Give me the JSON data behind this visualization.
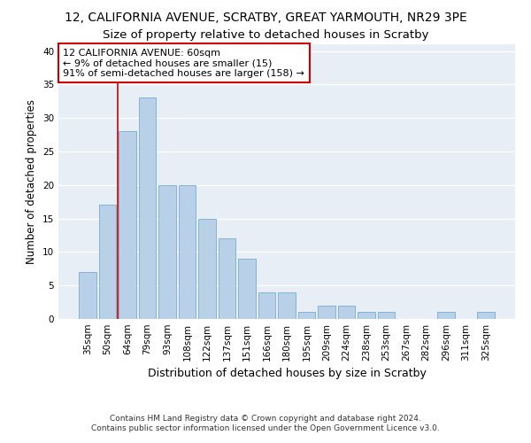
{
  "title1": "12, CALIFORNIA AVENUE, SCRATBY, GREAT YARMOUTH, NR29 3PE",
  "title2": "Size of property relative to detached houses in Scratby",
  "xlabel": "Distribution of detached houses by size in Scratby",
  "ylabel": "Number of detached properties",
  "categories": [
    "35sqm",
    "50sqm",
    "64sqm",
    "79sqm",
    "93sqm",
    "108sqm",
    "122sqm",
    "137sqm",
    "151sqm",
    "166sqm",
    "180sqm",
    "195sqm",
    "209sqm",
    "224sqm",
    "238sqm",
    "253sqm",
    "267sqm",
    "282sqm",
    "296sqm",
    "311sqm",
    "325sqm"
  ],
  "values": [
    7,
    17,
    28,
    33,
    20,
    20,
    15,
    12,
    9,
    4,
    4,
    1,
    2,
    2,
    1,
    1,
    0,
    0,
    1,
    0,
    1
  ],
  "bar_color": "#b8d0e8",
  "bar_edge_color": "#7aacd0",
  "vline_x": 1.5,
  "annotation_text": "12 CALIFORNIA AVENUE: 60sqm\n← 9% of detached houses are smaller (15)\n91% of semi-detached houses are larger (158) →",
  "annotation_box_color": "white",
  "annotation_box_edge_color": "#cc0000",
  "vline_color": "#cc0000",
  "ylim": [
    0,
    41
  ],
  "yticks": [
    0,
    5,
    10,
    15,
    20,
    25,
    30,
    35,
    40
  ],
  "background_color": "#e8eef5",
  "grid_color": "white",
  "footnote": "Contains HM Land Registry data © Crown copyright and database right 2024.\nContains public sector information licensed under the Open Government Licence v3.0.",
  "title1_fontsize": 10,
  "title2_fontsize": 9.5,
  "xlabel_fontsize": 9,
  "ylabel_fontsize": 8.5,
  "tick_fontsize": 7.5,
  "annotation_fontsize": 8,
  "footnote_fontsize": 6.5
}
